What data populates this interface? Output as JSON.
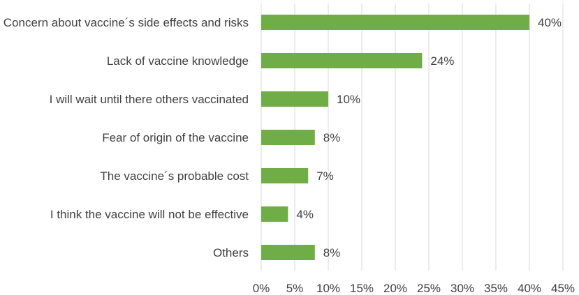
{
  "chart_data": {
    "type": "bar",
    "orientation": "horizontal",
    "title": "",
    "xlabel": "",
    "ylabel": "",
    "categories": [
      "Concern about vaccine´s side effects and risks",
      "Lack of vaccine knowledge",
      "I will wait until there others vaccinated",
      "Fear of origin of the vaccine",
      "The vaccine´s probable cost",
      "I think the vaccine will not be effective",
      "Others"
    ],
    "values": [
      40,
      24,
      10,
      8,
      7,
      4,
      8
    ],
    "value_labels": [
      "40%",
      "24%",
      "10%",
      "8%",
      "7%",
      "4%",
      "8%"
    ],
    "xlim": [
      0,
      45
    ],
    "x_ticks": [
      0,
      5,
      10,
      15,
      20,
      25,
      30,
      35,
      40,
      45
    ],
    "x_tick_labels": [
      "0%",
      "5%",
      "10%",
      "15%",
      "20%",
      "25%",
      "30%",
      "35%",
      "40%",
      "45%"
    ],
    "grid": "vertical",
    "legend": "none",
    "colors": {
      "bar": "#70ad47",
      "gridline": "#d9d9d9",
      "text": "#404040"
    }
  }
}
